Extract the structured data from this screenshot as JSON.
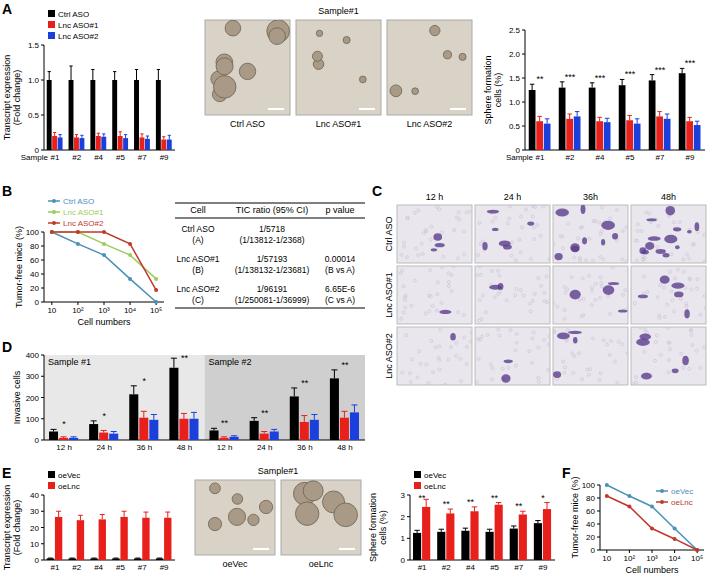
{
  "chart_data": [
    {
      "type": "bar",
      "ylabel": [
        "Transcript expression",
        "(Fold change)"
      ],
      "xlabel": "Sample",
      "categories": [
        "#1",
        "#2",
        "#4",
        "#5",
        "#7",
        "#9"
      ],
      "ylim": [
        0,
        1.5
      ],
      "yticks": [
        0,
        0.5,
        {
          "value": 1,
          "label": "1.0"
        },
        1.5
      ],
      "legend": "top",
      "series": [
        {
          "name": "Ctrl ASO",
          "color": "#000000",
          "values": [
            1,
            1,
            1,
            1,
            1,
            1
          ],
          "errors": [
            0.12,
            0.2,
            0.15,
            0.12,
            0.15,
            0.15
          ]
        },
        {
          "name": "Lnc ASO#1",
          "color": "#e8201c",
          "values": [
            0.2,
            0.18,
            0.2,
            0.2,
            0.18,
            0.15
          ],
          "errors": [
            0.05,
            0.04,
            0.04,
            0.06,
            0.05,
            0.04
          ]
        },
        {
          "name": "Lnc ASO#2",
          "color": "#1a3fdb",
          "values": [
            0.18,
            0.17,
            0.19,
            0.17,
            0.16,
            0.15
          ],
          "errors": [
            0.04,
            0.04,
            0.04,
            0.05,
            0.04,
            0.06
          ]
        }
      ]
    },
    {
      "type": "bar",
      "ylabel": [
        "Sphere formation",
        "cells (%)"
      ],
      "xlabel": "Sample",
      "categories": [
        "#1",
        "#2",
        "#4",
        "#5",
        "#7",
        "#9"
      ],
      "ylim": [
        0,
        2.5
      ],
      "yticks": [
        0,
        0.5,
        {
          "value": 1,
          "label": "1.0"
        },
        1.5,
        {
          "value": 2,
          "label": "2.0"
        },
        2.5
      ],
      "annotations": [
        "**",
        "***",
        "***",
        "***",
        "***",
        "***"
      ],
      "series": [
        {
          "color": "#000000",
          "values": [
            1.25,
            1.3,
            1.3,
            1.35,
            1.45,
            1.6
          ],
          "errors": [
            0.12,
            0.12,
            0.1,
            0.12,
            0.12,
            0.1
          ]
        },
        {
          "color": "#e8201c",
          "values": [
            0.6,
            0.65,
            0.6,
            0.62,
            0.7,
            0.6
          ],
          "errors": [
            0.1,
            0.1,
            0.08,
            0.1,
            0.1,
            0.08
          ]
        },
        {
          "color": "#1a3fdb",
          "values": [
            0.55,
            0.7,
            0.58,
            0.55,
            0.65,
            0.52
          ],
          "errors": [
            0.1,
            0.1,
            0.08,
            0.1,
            0.1,
            0.08
          ]
        }
      ]
    },
    {
      "type": "line",
      "log": "x",
      "xlabel": "Cell numbers",
      "ylabel": [
        "Tumor-free mice (%)"
      ],
      "x": [
        10,
        100,
        1000,
        10000,
        100000
      ],
      "xlim": [
        5,
        200000
      ],
      "xticks": [
        10,
        {
          "value": 100,
          "label": "10²"
        },
        {
          "value": 1000,
          "label": "10³"
        },
        {
          "value": 10000,
          "label": "10⁴"
        },
        {
          "value": 100000,
          "label": "10⁵"
        }
      ],
      "ylim": [
        0,
        100
      ],
      "yticks": [
        0,
        20,
        40,
        60,
        80,
        100
      ],
      "legend": "top",
      "marker": "circle",
      "series": [
        {
          "name": "Ctrl ASO",
          "color": "#4a90b8",
          "values": [
            100,
            83,
            67,
            33,
            0
          ]
        },
        {
          "name": "Lnc ASO#1",
          "color": "#9acd5a",
          "values": [
            100,
            100,
            83,
            67,
            33
          ]
        },
        {
          "name": "Lnc ASO#2",
          "color": "#c0392b",
          "values": [
            100,
            100,
            100,
            83,
            17
          ]
        }
      ]
    },
    {
      "type": "bar",
      "ylabel": [
        "Invasive cells"
      ],
      "categories": [
        "12 h",
        "24 h",
        "36 h",
        "48 h",
        "12 h",
        "24 h",
        "36 h",
        "48 h"
      ],
      "group_labels": [
        "Sample #1",
        "Sample #2"
      ],
      "ylim": [
        0,
        400
      ],
      "yticks": [
        0,
        100,
        200,
        300,
        400
      ],
      "annotations": [
        "*",
        "*",
        "*",
        "**",
        "**",
        "**",
        "**",
        "**"
      ],
      "series": [
        {
          "color": "#000000",
          "values": [
            40,
            75,
            215,
            340,
            45,
            90,
            205,
            290
          ],
          "errors": [
            10,
            15,
            40,
            45,
            10,
            15,
            40,
            40
          ]
        },
        {
          "color": "#e8201c",
          "values": [
            10,
            35,
            105,
            100,
            10,
            30,
            85,
            105
          ],
          "errors": [
            5,
            10,
            30,
            25,
            5,
            10,
            30,
            30
          ]
        },
        {
          "color": "#1a3fdb",
          "values": [
            10,
            30,
            95,
            100,
            15,
            40,
            95,
            130
          ],
          "errors": [
            5,
            10,
            25,
            30,
            5,
            10,
            25,
            35
          ]
        }
      ]
    },
    {
      "type": "bar",
      "ylabel": [
        "Transcript expression",
        "(Fold change)"
      ],
      "categories": [
        "#1",
        "#2",
        "#4",
        "#5",
        "#7",
        "#9"
      ],
      "ylim": [
        0,
        40
      ],
      "yticks": [
        0,
        10,
        20,
        30,
        40
      ],
      "legend": "top",
      "series": [
        {
          "name": "oeVec",
          "color": "#000000",
          "values": [
            1,
            1,
            1,
            1,
            1,
            1
          ],
          "errors": [
            0.2,
            0.2,
            0.2,
            0.2,
            0.2,
            0.2
          ]
        },
        {
          "name": "oeLnc",
          "color": "#e8201c",
          "values": [
            26.5,
            24.5,
            25,
            26.5,
            26,
            26
          ],
          "errors": [
            3.5,
            3,
            3,
            3.5,
            3.5,
            3.5
          ]
        }
      ]
    },
    {
      "type": "bar",
      "ylabel": [
        "Sphere formation",
        "cells (%)"
      ],
      "categories": [
        "#1",
        "#2",
        "#4",
        "#5",
        "#7",
        "#9"
      ],
      "ylim": [
        0,
        3
      ],
      "yticks": [
        0,
        1,
        2,
        3
      ],
      "legend": "top",
      "annotations": [
        "**",
        "**",
        "**",
        "**",
        "**",
        "*"
      ],
      "series": [
        {
          "name": "oeVec",
          "color": "#000000",
          "values": [
            1.25,
            1.3,
            1.35,
            1.3,
            1.45,
            1.7
          ],
          "errors": [
            0.12,
            0.12,
            0.12,
            0.12,
            0.12,
            0.12
          ]
        },
        {
          "name": "oeLnc",
          "color": "#e8201c",
          "values": [
            2.45,
            2.15,
            2.25,
            2.55,
            2.1,
            2.35
          ],
          "errors": [
            0.35,
            0.2,
            0.2,
            0.1,
            0.15,
            0.3
          ]
        }
      ]
    },
    {
      "type": "line",
      "log": "x",
      "xlabel": "Cell numbers",
      "ylabel": [
        "Tumor-free mice (%)"
      ],
      "x": [
        10,
        100,
        1000,
        10000,
        100000
      ],
      "xlim": [
        5,
        200000
      ],
      "xticks": [
        10,
        {
          "value": 100,
          "label": "10²"
        },
        {
          "value": 1000,
          "label": "10³"
        },
        {
          "value": 10000,
          "label": "10⁴"
        },
        {
          "value": 100000,
          "label": "10⁵"
        }
      ],
      "ylim": [
        0,
        100
      ],
      "yticks": [
        0,
        20,
        40,
        60,
        80,
        100
      ],
      "legend": "top-right",
      "marker": "circle",
      "series": [
        {
          "name": "oeVec",
          "color": "#4a90b8",
          "values": [
            100,
            83,
            67,
            33,
            0
          ]
        },
        {
          "name": "oeLnc",
          "color": "#c0392b",
          "values": [
            83,
            67,
            33,
            17,
            0
          ]
        }
      ]
    }
  ],
  "figure": {
    "panel_labels": [
      "A",
      "B",
      "C",
      "D",
      "E",
      "F"
    ],
    "image_sets": [
      {
        "title": "Sample#1",
        "labels": [
          "Ctrl ASO",
          "Lnc ASO#1",
          "Lnc ASO#2"
        ]
      },
      {
        "title": "Sample#1",
        "labels": [
          "oeVec",
          "oeLnc"
        ]
      }
    ],
    "invasion_grid": {
      "columns": [
        "12 h",
        "24 h",
        "36h",
        "48h"
      ],
      "rows": [
        "Ctrl ASO",
        "Lnc ASO#1",
        "Lnc ASO#2"
      ]
    },
    "tic_table": {
      "header": [
        "Cell",
        "TIC ratio (95% CI)",
        "p value"
      ],
      "rows": [
        [
          [
            "Ctrl ASO",
            "(A)"
          ],
          [
            "1/5718",
            "(1/13812-1/2368)"
          ],
          []
        ],
        [
          [
            "Lnc ASO#1",
            "(B)"
          ],
          [
            "1/57193",
            "(1/138132-1/23681)"
          ],
          [
            "0.00014",
            "(B vs A)"
          ]
        ],
        [
          [
            "Lnc ASO#2",
            "(C)"
          ],
          [
            "1/96191",
            "(1/250081-1/36999)"
          ],
          [
            "6.65E-6",
            "(C vs A)"
          ]
        ]
      ]
    }
  }
}
